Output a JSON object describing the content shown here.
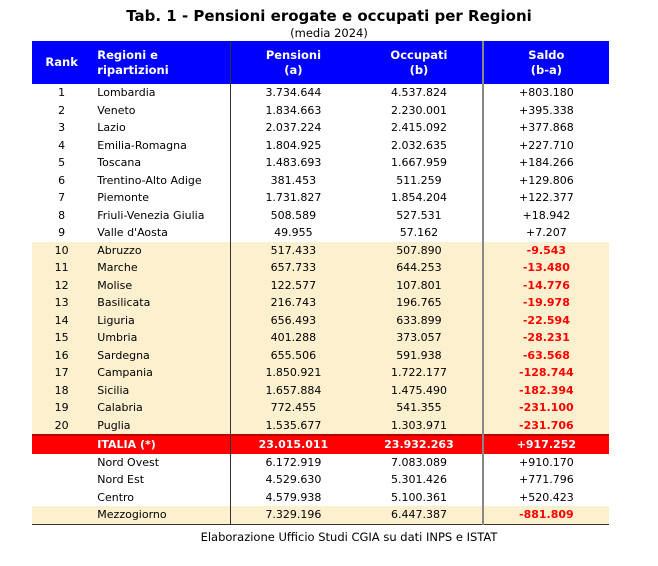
{
  "title": "Tab. 1 - Pensioni erogate e occupati per Regioni",
  "subtitle": "(media 2024)",
  "headers": {
    "rank": "Rank",
    "region_l1": "Regioni e",
    "region_l2": "ripartizioni",
    "pen_l1": "Pensioni",
    "pen_l2": "(a)",
    "occ_l1": "Occupati",
    "occ_l2": "(b)",
    "sal_l1": "Saldo",
    "sal_l2": "(b-a)"
  },
  "rows": [
    {
      "rank": "1",
      "region": "Lombardia",
      "pensioni": "3.734.644",
      "occupati": "4.537.824",
      "saldo": "+803.180"
    },
    {
      "rank": "2",
      "region": "Veneto",
      "pensioni": "1.834.663",
      "occupati": "2.230.001",
      "saldo": "+395.338"
    },
    {
      "rank": "3",
      "region": "Lazio",
      "pensioni": "2.037.224",
      "occupati": "2.415.092",
      "saldo": "+377.868"
    },
    {
      "rank": "4",
      "region": "Emilia-Romagna",
      "pensioni": "1.804.925",
      "occupati": "2.032.635",
      "saldo": "+227.710"
    },
    {
      "rank": "5",
      "region": "Toscana",
      "pensioni": "1.483.693",
      "occupati": "1.667.959",
      "saldo": "+184.266"
    },
    {
      "rank": "6",
      "region": "Trentino-Alto Adige",
      "pensioni": "381.453",
      "occupati": "511.259",
      "saldo": "+129.806"
    },
    {
      "rank": "7",
      "region": "Piemonte",
      "pensioni": "1.731.827",
      "occupati": "1.854.204",
      "saldo": "+122.377"
    },
    {
      "rank": "8",
      "region": "Friuli-Venezia Giulia",
      "pensioni": "508.589",
      "occupati": "527.531",
      "saldo": "+18.942"
    },
    {
      "rank": "9",
      "region": "Valle d'Aosta",
      "pensioni": "49.955",
      "occupati": "57.162",
      "saldo": "+7.207"
    },
    {
      "rank": "10",
      "region": "Abruzzo",
      "pensioni": "517.433",
      "occupati": "507.890",
      "saldo": "-9.543"
    },
    {
      "rank": "11",
      "region": "Marche",
      "pensioni": "657.733",
      "occupati": "644.253",
      "saldo": "-13.480"
    },
    {
      "rank": "12",
      "region": "Molise",
      "pensioni": "122.577",
      "occupati": "107.801",
      "saldo": "-14.776"
    },
    {
      "rank": "13",
      "region": "Basilicata",
      "pensioni": "216.743",
      "occupati": "196.765",
      "saldo": "-19.978"
    },
    {
      "rank": "14",
      "region": "Liguria",
      "pensioni": "656.493",
      "occupati": "633.899",
      "saldo": "-22.594"
    },
    {
      "rank": "15",
      "region": "Umbria",
      "pensioni": "401.288",
      "occupati": "373.057",
      "saldo": "-28.231"
    },
    {
      "rank": "16",
      "region": "Sardegna",
      "pensioni": "655.506",
      "occupati": "591.938",
      "saldo": "-63.568"
    },
    {
      "rank": "17",
      "region": "Campania",
      "pensioni": "1.850.921",
      "occupati": "1.722.177",
      "saldo": "-128.744"
    },
    {
      "rank": "18",
      "region": "Sicilia",
      "pensioni": "1.657.884",
      "occupati": "1.475.490",
      "saldo": "-182.394"
    },
    {
      "rank": "19",
      "region": "Calabria",
      "pensioni": "772.455",
      "occupati": "541.355",
      "saldo": "-231.100"
    },
    {
      "rank": "20",
      "region": "Puglia",
      "pensioni": "1.535.677",
      "occupati": "1.303.971",
      "saldo": "-231.706"
    }
  ],
  "total": {
    "region": "ITALIA (*)",
    "pensioni": "23.015.011",
    "occupati": "23.932.263",
    "saldo": "+917.252"
  },
  "areas": [
    {
      "region": "Nord Ovest",
      "pensioni": "6.172.919",
      "occupati": "7.083.089",
      "saldo": "+910.170"
    },
    {
      "region": "Nord Est",
      "pensioni": "4.529.630",
      "occupati": "5.301.426",
      "saldo": "+771.796"
    },
    {
      "region": "Centro",
      "pensioni": "4.579.938",
      "occupati": "5.100.361",
      "saldo": "+520.423"
    },
    {
      "region": "Mezzogiorno",
      "pensioni": "7.329.196",
      "occupati": "6.447.387",
      "saldo": "-881.809"
    }
  ],
  "footer": "Elaborazione Ufficio Studi CGIA su dati INPS e ISTAT",
  "colors": {
    "header": "#0000ff",
    "total": "#ff0000",
    "negative_row": "#fdf0cf",
    "negative_text": "#ff0000"
  }
}
